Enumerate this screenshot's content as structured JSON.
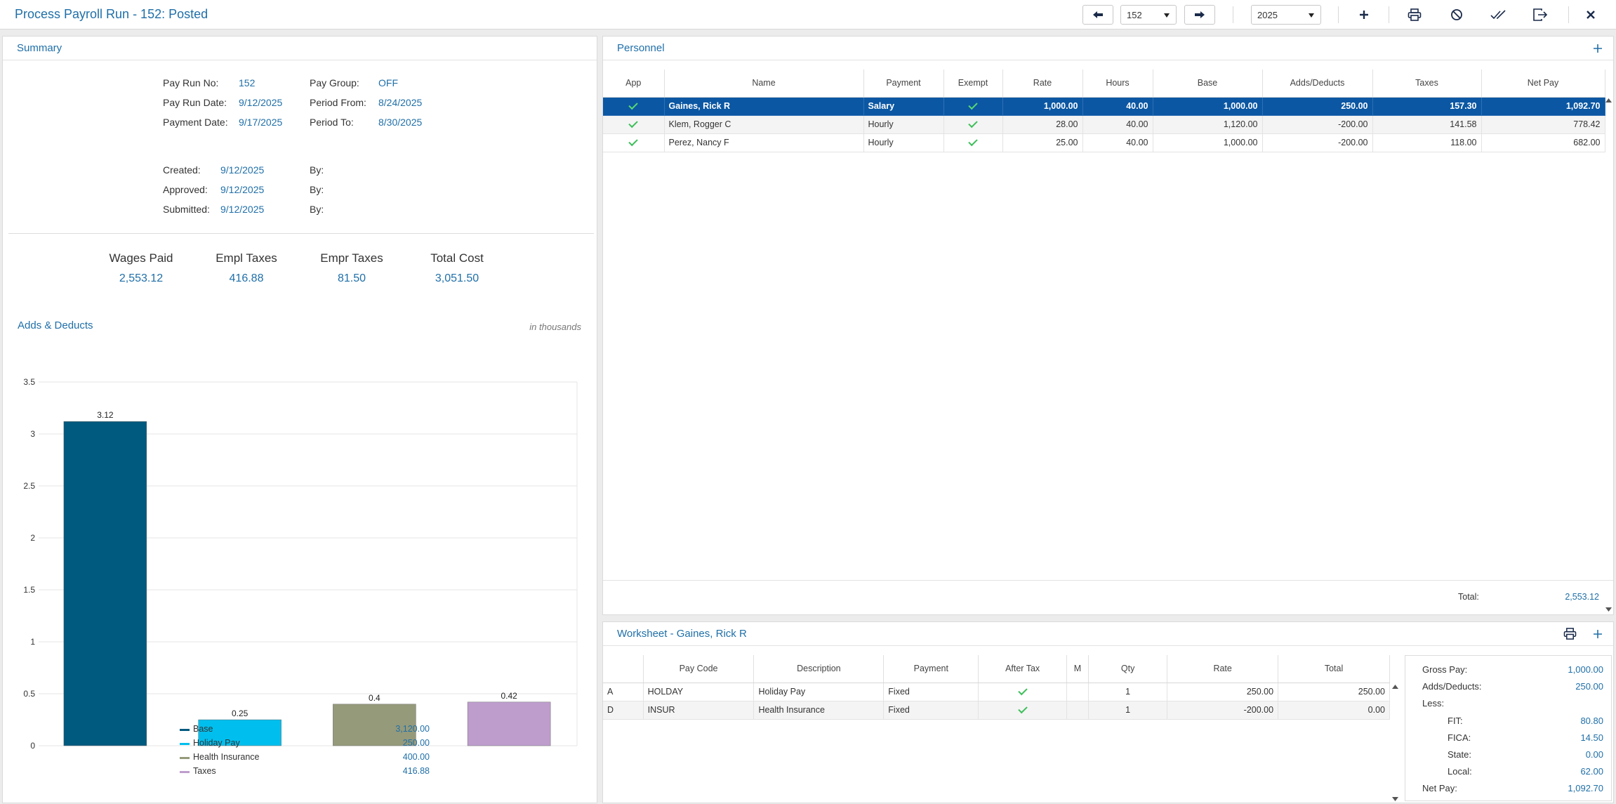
{
  "window": {
    "title": "Process Payroll Run - 152: Posted"
  },
  "toolbar": {
    "run_number": "152",
    "year": "2025"
  },
  "summary": {
    "header": "Summary",
    "fields": {
      "pay_run_no_label": "Pay Run No:",
      "pay_run_no": "152",
      "pay_group_label": "Pay Group:",
      "pay_group": "OFF",
      "pay_run_date_label": "Pay Run Date:",
      "pay_run_date": "9/12/2025",
      "period_from_label": "Period From:",
      "period_from": "8/24/2025",
      "payment_date_label": "Payment Date:",
      "payment_date": "9/17/2025",
      "period_to_label": "Period To:",
      "period_to": "8/30/2025",
      "created_label": "Created:",
      "created": "9/12/2025",
      "approved_label": "Approved:",
      "approved": "9/12/2025",
      "submitted_label": "Submitted:",
      "submitted": "9/12/2025",
      "by_label": "By:"
    },
    "kpis": [
      {
        "label": "Wages Paid",
        "value": "2,553.12"
      },
      {
        "label": "Empl Taxes",
        "value": "416.88"
      },
      {
        "label": "Empr Taxes",
        "value": "81.50"
      },
      {
        "label": "Total Cost",
        "value": "3,051.50"
      }
    ]
  },
  "adds_deducts": {
    "header": "Adds & Deducts",
    "note": "in thousands",
    "legend": [
      {
        "name": "Base",
        "value": "3,120.00",
        "color": "#00597f"
      },
      {
        "name": "Holiday Pay",
        "value": "250.00",
        "color": "#00bfee"
      },
      {
        "name": "Health Insurance",
        "value": "400.00",
        "color": "#959a7a"
      },
      {
        "name": "Taxes",
        "value": "416.88",
        "color": "#be9dcd"
      }
    ]
  },
  "chart_data": {
    "type": "bar",
    "categories": [
      "Base",
      "Holiday Pay",
      "Health Insurance",
      "Taxes"
    ],
    "values": [
      3.12,
      0.25,
      0.4,
      0.42
    ],
    "value_labels": [
      "3.12",
      "0.25",
      "0.4",
      "0.42"
    ],
    "colors": [
      "#00597f",
      "#00bfee",
      "#959a7a",
      "#be9dcd"
    ],
    "yticks": [
      "0",
      "0.5",
      "1",
      "1.5",
      "2",
      "2.5",
      "3",
      "3.5"
    ],
    "ylim": [
      0,
      3.5
    ],
    "title": "",
    "xlabel": "",
    "ylabel": "",
    "grid": true,
    "legend": "bottom"
  },
  "personnel": {
    "header": "Personnel",
    "columns": [
      "App",
      "Name",
      "Payment",
      "Exempt",
      "Rate",
      "Hours",
      "Base",
      "Adds/Deducts",
      "Taxes",
      "Net Pay"
    ],
    "rows": [
      {
        "name": "Gaines, Rick R",
        "payment": "Salary",
        "rate": "1,000.00",
        "hours": "40.00",
        "base": "1,000.00",
        "adds": "250.00",
        "taxes": "157.30",
        "net": "1,092.70"
      },
      {
        "name": "Klem, Rogger C",
        "payment": "Hourly",
        "rate": "28.00",
        "hours": "40.00",
        "base": "1,120.00",
        "adds": "-200.00",
        "taxes": "141.58",
        "net": "778.42"
      },
      {
        "name": "Perez, Nancy F",
        "payment": "Hourly",
        "rate": "25.00",
        "hours": "40.00",
        "base": "1,000.00",
        "adds": "-200.00",
        "taxes": "118.00",
        "net": "682.00"
      }
    ],
    "total_label": "Total:",
    "total": "2,553.12"
  },
  "worksheet": {
    "header": "Worksheet - Gaines, Rick R",
    "columns": [
      "",
      "Pay Code",
      "Description",
      "Payment",
      "After Tax",
      "M",
      "Qty",
      "Rate",
      "Total"
    ],
    "rows": [
      {
        "type": "A",
        "code": "HOLDAY",
        "description": "Holiday Pay",
        "payment": "Fixed",
        "m": "",
        "qty": "1",
        "rate": "250.00",
        "total": "250.00"
      },
      {
        "type": "D",
        "code": "INSUR",
        "description": "Health Insurance",
        "payment": "Fixed",
        "m": "",
        "qty": "1",
        "rate": "-200.00",
        "total": "0.00"
      }
    ],
    "summary": [
      {
        "label": "Gross Pay:",
        "value": "1,000.00",
        "indent": false
      },
      {
        "label": "Adds/Deducts:",
        "value": "250.00",
        "indent": false
      },
      {
        "label": "Less:",
        "value": "",
        "indent": false
      },
      {
        "label": "FIT:",
        "value": "80.80",
        "indent": true
      },
      {
        "label": "FICA:",
        "value": "14.50",
        "indent": true
      },
      {
        "label": "State:",
        "value": "0.00",
        "indent": true
      },
      {
        "label": "Local:",
        "value": "62.00",
        "indent": true
      },
      {
        "label": "Net Pay:",
        "value": "1,092.70",
        "indent": false
      }
    ]
  }
}
